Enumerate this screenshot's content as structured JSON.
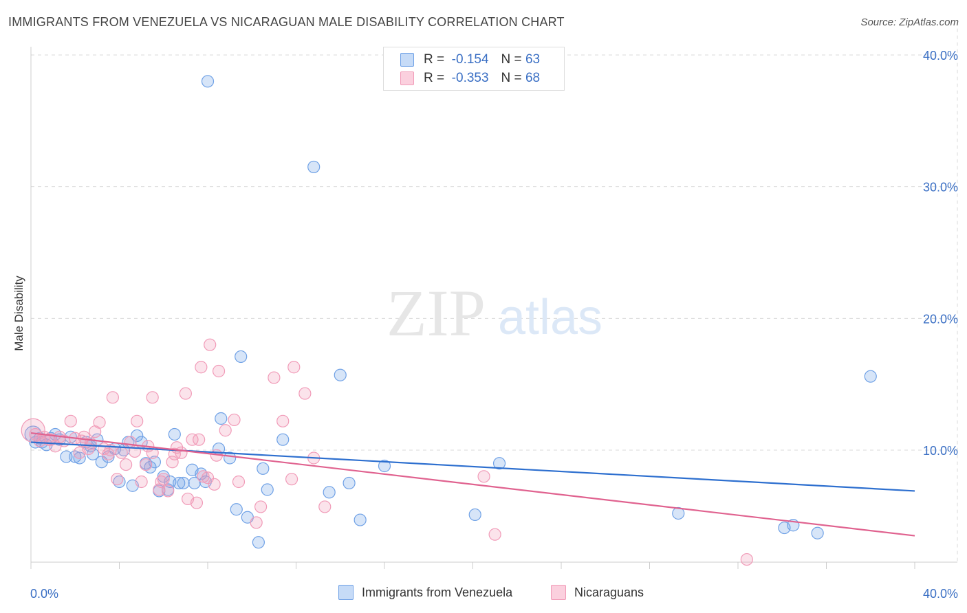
{
  "title": "IMMIGRANTS FROM VENEZUELA VS NICARAGUAN MALE DISABILITY CORRELATION CHART",
  "source": "Source: ZipAtlas.com",
  "watermark": {
    "zip": "ZIP",
    "atlas": "atlas"
  },
  "legend": {
    "series1": {
      "r_label": "R =",
      "r_value": "-0.154",
      "n_label": "N =",
      "n_value": "63"
    },
    "series2": {
      "r_label": "R =",
      "r_value": "-0.353",
      "n_label": "N =",
      "n_value": "68"
    }
  },
  "chart_data": {
    "type": "scatter",
    "title": "IMMIGRANTS FROM VENEZUELA VS NICARAGUAN MALE DISABILITY CORRELATION CHART",
    "xlabel": "",
    "ylabel": "Male Disability",
    "xlim": [
      0,
      40
    ],
    "ylim": [
      0,
      42
    ],
    "x_tick_labels": [
      "0.0%",
      "40.0%"
    ],
    "y_ticks": [
      10,
      20,
      30,
      40
    ],
    "y_tick_labels": [
      "10.0%",
      "20.0%",
      "30.0%",
      "40.0%"
    ],
    "grid": true,
    "legend_position": "bottom-center",
    "colors": {
      "blue": "#6fa1e6",
      "blue_line": "#2d6fcf",
      "pink": "#f19bb8",
      "pink_line": "#e0628f",
      "axis_text": "#3a6fc4"
    },
    "series": [
      {
        "name": "Immigrants from Venezuela",
        "color": "#6fa1e6",
        "trend": [
          [
            0,
            10.6
          ],
          [
            40,
            6.9
          ]
        ],
        "points": [
          [
            0.1,
            11.2
          ],
          [
            0.2,
            10.6
          ],
          [
            0.4,
            10.9
          ],
          [
            0.5,
            10.6
          ],
          [
            0.7,
            10.4
          ],
          [
            0.9,
            10.9
          ],
          [
            1.1,
            11.2
          ],
          [
            1.3,
            10.8
          ],
          [
            1.6,
            9.5
          ],
          [
            1.8,
            11.0
          ],
          [
            2.0,
            9.5
          ],
          [
            2.2,
            9.4
          ],
          [
            2.5,
            10.6
          ],
          [
            2.7,
            10.3
          ],
          [
            2.8,
            9.7
          ],
          [
            3.0,
            10.8
          ],
          [
            3.2,
            9.1
          ],
          [
            3.5,
            9.5
          ],
          [
            3.8,
            10.1
          ],
          [
            4.0,
            7.6
          ],
          [
            4.2,
            10.0
          ],
          [
            4.4,
            10.6
          ],
          [
            4.6,
            7.3
          ],
          [
            4.8,
            11.1
          ],
          [
            5.0,
            10.6
          ],
          [
            5.2,
            9.0
          ],
          [
            5.4,
            8.7
          ],
          [
            5.6,
            9.1
          ],
          [
            5.8,
            6.9
          ],
          [
            6.0,
            8.0
          ],
          [
            6.2,
            7.0
          ],
          [
            6.3,
            7.6
          ],
          [
            6.5,
            11.2
          ],
          [
            6.7,
            7.5
          ],
          [
            6.9,
            7.5
          ],
          [
            7.3,
            8.5
          ],
          [
            7.4,
            7.5
          ],
          [
            7.7,
            8.2
          ],
          [
            7.9,
            7.6
          ],
          [
            8.0,
            38.0
          ],
          [
            8.6,
            12.4
          ],
          [
            8.5,
            10.1
          ],
          [
            9.0,
            9.4
          ],
          [
            9.3,
            5.5
          ],
          [
            9.5,
            17.1
          ],
          [
            9.8,
            4.9
          ],
          [
            10.5,
            8.6
          ],
          [
            10.7,
            7.0
          ],
          [
            10.3,
            3.0
          ],
          [
            11.4,
            10.8
          ],
          [
            12.8,
            31.5
          ],
          [
            13.5,
            6.8
          ],
          [
            14.0,
            15.7
          ],
          [
            14.4,
            7.5
          ],
          [
            14.9,
            4.7
          ],
          [
            16.0,
            8.8
          ],
          [
            20.1,
            5.1
          ],
          [
            21.2,
            9.0
          ],
          [
            29.3,
            5.2
          ],
          [
            34.1,
            4.1
          ],
          [
            34.5,
            4.3
          ],
          [
            35.6,
            3.7
          ],
          [
            38.0,
            15.6
          ]
        ]
      },
      {
        "name": "Nicaraguans",
        "color": "#f19bb8",
        "trend": [
          [
            0,
            11.3
          ],
          [
            40,
            3.5
          ]
        ],
        "points": [
          [
            0.1,
            11.5
          ],
          [
            0.2,
            11.2
          ],
          [
            0.4,
            10.7
          ],
          [
            0.6,
            11.0
          ],
          [
            0.9,
            10.8
          ],
          [
            1.1,
            10.3
          ],
          [
            1.3,
            11.0
          ],
          [
            1.5,
            10.7
          ],
          [
            1.8,
            12.2
          ],
          [
            2.0,
            10.9
          ],
          [
            2.2,
            9.8
          ],
          [
            2.4,
            11.0
          ],
          [
            2.6,
            10.1
          ],
          [
            2.7,
            10.5
          ],
          [
            2.9,
            11.4
          ],
          [
            3.1,
            12.1
          ],
          [
            3.3,
            10.1
          ],
          [
            3.5,
            9.7
          ],
          [
            3.7,
            14.0
          ],
          [
            3.9,
            7.8
          ],
          [
            4.1,
            9.8
          ],
          [
            4.3,
            8.9
          ],
          [
            4.5,
            10.6
          ],
          [
            4.7,
            9.9
          ],
          [
            4.8,
            12.2
          ],
          [
            5.0,
            7.6
          ],
          [
            5.2,
            8.9
          ],
          [
            5.3,
            10.3
          ],
          [
            5.5,
            9.8
          ],
          [
            5.5,
            14.0
          ],
          [
            5.8,
            7.0
          ],
          [
            5.9,
            7.6
          ],
          [
            6.0,
            7.8
          ],
          [
            6.2,
            6.9
          ],
          [
            6.4,
            9.1
          ],
          [
            6.5,
            9.7
          ],
          [
            6.6,
            10.2
          ],
          [
            6.8,
            9.8
          ],
          [
            7.0,
            14.3
          ],
          [
            7.1,
            6.3
          ],
          [
            7.3,
            10.8
          ],
          [
            7.5,
            6.0
          ],
          [
            7.6,
            10.8
          ],
          [
            7.8,
            8.0
          ],
          [
            8.0,
            7.9
          ],
          [
            8.1,
            18.0
          ],
          [
            8.3,
            7.4
          ],
          [
            8.4,
            9.6
          ],
          [
            7.7,
            16.3
          ],
          [
            8.5,
            16.0
          ],
          [
            8.8,
            11.5
          ],
          [
            9.2,
            12.3
          ],
          [
            9.4,
            7.6
          ],
          [
            10.2,
            4.5
          ],
          [
            10.4,
            5.7
          ],
          [
            11.0,
            15.5
          ],
          [
            11.4,
            12.2
          ],
          [
            11.8,
            7.8
          ],
          [
            11.9,
            16.3
          ],
          [
            12.4,
            14.3
          ],
          [
            12.8,
            9.4
          ],
          [
            13.3,
            5.7
          ],
          [
            20.5,
            8.0
          ],
          [
            21.0,
            3.6
          ],
          [
            32.4,
            1.7
          ],
          [
            0.8,
            10.8
          ],
          [
            2.3,
            10.7
          ],
          [
            3.6,
            10.0
          ]
        ]
      }
    ]
  },
  "bottom_legend": {
    "series1": "Immigrants from Venezuela",
    "series2": "Nicaraguans"
  }
}
